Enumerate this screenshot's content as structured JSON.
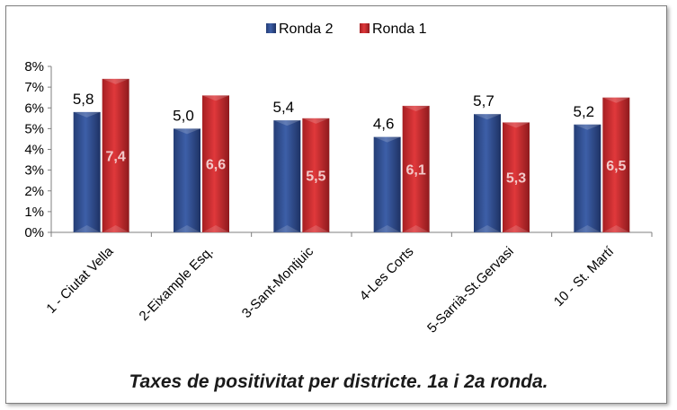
{
  "chart_data": {
    "type": "bar",
    "categories": [
      "1 - Ciutat Vella",
      "2-Eixample Esq.",
      "3-Sant-Montjuic",
      "4-Les Corts",
      "5-Sarrià-St.Gervasi",
      "10 - St. Martí"
    ],
    "series": [
      {
        "name": "Ronda 2",
        "values": [
          5.8,
          5.0,
          5.4,
          4.6,
          5.7,
          5.2
        ],
        "labels": [
          "5,8",
          "5,0",
          "5,4",
          "4,6",
          "5,7",
          "5,2"
        ],
        "color": "#2e4a8a"
      },
      {
        "name": "Ronda 1",
        "values": [
          7.4,
          6.6,
          5.5,
          6.1,
          5.3,
          6.5
        ],
        "labels": [
          "7,4",
          "6,6",
          "5,5",
          "6,1",
          "5,3",
          "6,5"
        ],
        "color": "#c0282c"
      }
    ],
    "yticks": [
      "0%",
      "1%",
      "2%",
      "3%",
      "4%",
      "5%",
      "6%",
      "7%",
      "8%"
    ],
    "ylim": [
      0,
      8
    ],
    "grid": false,
    "legend": "top-center"
  },
  "caption": "Taxes de positivitat per districte. 1a i 2a ronda."
}
